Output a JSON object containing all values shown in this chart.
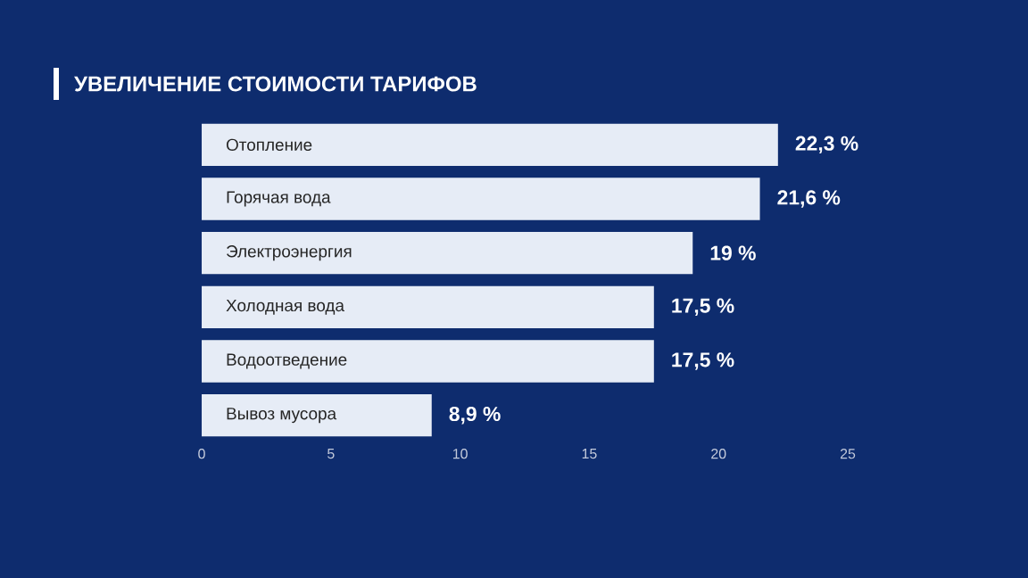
{
  "chart_data": {
    "type": "bar",
    "orientation": "horizontal",
    "title": "УВЕЛИЧЕНИЕ СТОИМОСТИ ТАРИФОВ",
    "categories": [
      "Отопление",
      "Горячая вода",
      "Электроэнергия",
      "Холодная вода",
      "Водоотведение",
      "Вывоз мусора"
    ],
    "values": [
      22.3,
      21.6,
      19,
      17.5,
      17.5,
      8.9
    ],
    "value_labels": [
      "22,3 %",
      "21,6 %",
      "19 %",
      "17,5 %",
      "17,5 %",
      "8,9 %"
    ],
    "color": "#e6ecf6",
    "xlim": [
      0,
      25
    ],
    "xticks": [
      0,
      5,
      10,
      15,
      20,
      25
    ]
  }
}
